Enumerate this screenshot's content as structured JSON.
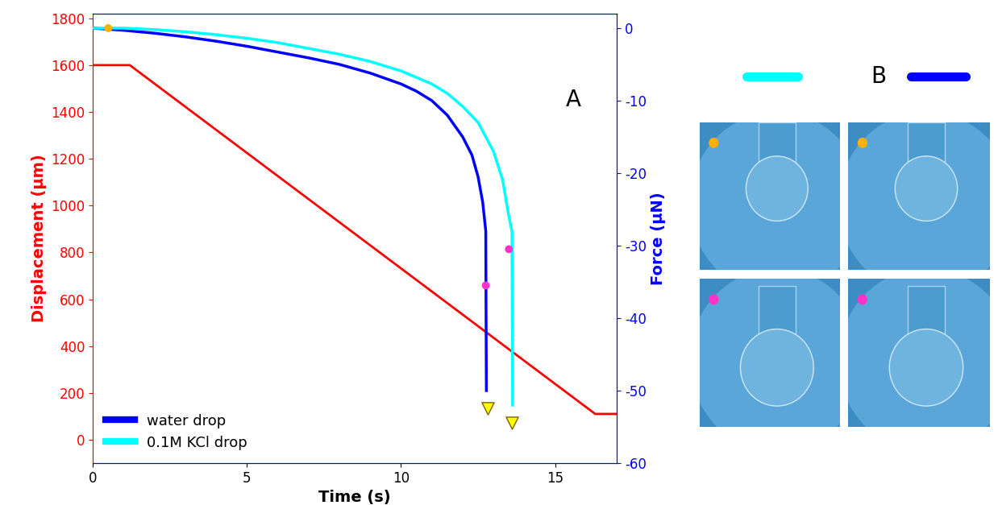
{
  "chart_data": {
    "type": "line",
    "x_label": "Time (s)",
    "y_label": "Displacement (μm)",
    "y2_label": "Force (μN)",
    "xlim": [
      0,
      17
    ],
    "xticks": [
      0,
      5,
      10,
      15
    ],
    "ylim": [
      -100,
      1820
    ],
    "yticks": [
      0,
      200,
      400,
      600,
      800,
      1000,
      1200,
      1400,
      1600,
      1800
    ],
    "y2lim": [
      -60,
      2
    ],
    "y2ticks": [
      -60,
      -50,
      -40,
      -30,
      -20,
      -10,
      0
    ],
    "legend": "lower left",
    "annotations": [
      {
        "text": "A",
        "x": 15.6,
        "y": 1450
      }
    ],
    "series": [
      {
        "type": "line",
        "color": "#ff0000",
        "x": [
          0,
          1.2,
          16.3,
          17
        ],
        "values": [
          1600,
          1600,
          110,
          110
        ]
      },
      {
        "name": "water drop",
        "type": "line",
        "axis": "y2",
        "color": "#0000ff",
        "x": [
          0,
          1,
          2,
          3,
          4,
          5,
          6,
          7,
          8,
          9,
          10,
          10.5,
          11,
          11.5,
          12,
          12.3,
          12.5,
          12.65,
          12.75,
          12.76,
          12.77
        ],
        "values": [
          0,
          -0.3,
          -0.7,
          -1.2,
          -1.8,
          -2.5,
          -3.3,
          -4.1,
          -5.0,
          -6.2,
          -7.7,
          -8.7,
          -10.0,
          -12.0,
          -15.0,
          -17.5,
          -20.5,
          -24,
          -28,
          -40,
          -50
        ]
      },
      {
        "name": "0.1M KCl drop",
        "type": "line",
        "axis": "y2",
        "color": "#00ffff",
        "x": [
          0,
          1,
          2,
          3,
          4,
          5,
          6,
          7,
          8,
          9,
          10,
          11,
          11.5,
          12,
          12.5,
          13,
          13.3,
          13.5,
          13.6,
          13.61,
          13.62
        ],
        "values": [
          0,
          0,
          -0.2,
          -0.5,
          -0.9,
          -1.4,
          -2.0,
          -2.8,
          -3.6,
          -4.6,
          -5.9,
          -7.7,
          -9.0,
          -10.8,
          -13.0,
          -17.0,
          -21.0,
          -26.0,
          -28.0,
          -40.0,
          -52.0
        ]
      },
      {
        "type": "scatter",
        "axis": "y2",
        "color": "#ffb000",
        "marker": "o",
        "x": [
          0.5
        ],
        "values": [
          0
        ]
      },
      {
        "type": "scatter",
        "axis": "y2",
        "color": "#ff33cc",
        "marker": "o",
        "x": [
          12.75,
          13.5
        ],
        "values": [
          -35.5,
          -30.5
        ]
      },
      {
        "type": "scatter",
        "axis": "y2",
        "color": "#ffff00",
        "marker": "v",
        "x": [
          12.8,
          13.6
        ],
        "values": [
          -52.5,
          -54.5
        ]
      }
    ]
  },
  "panel_b": {
    "label": "B",
    "key_colors": [
      "#00ffff",
      "#0000ff"
    ],
    "image_dots": [
      "#ffb000",
      "#ffb000",
      "#ff33cc",
      "#ff33cc"
    ]
  }
}
